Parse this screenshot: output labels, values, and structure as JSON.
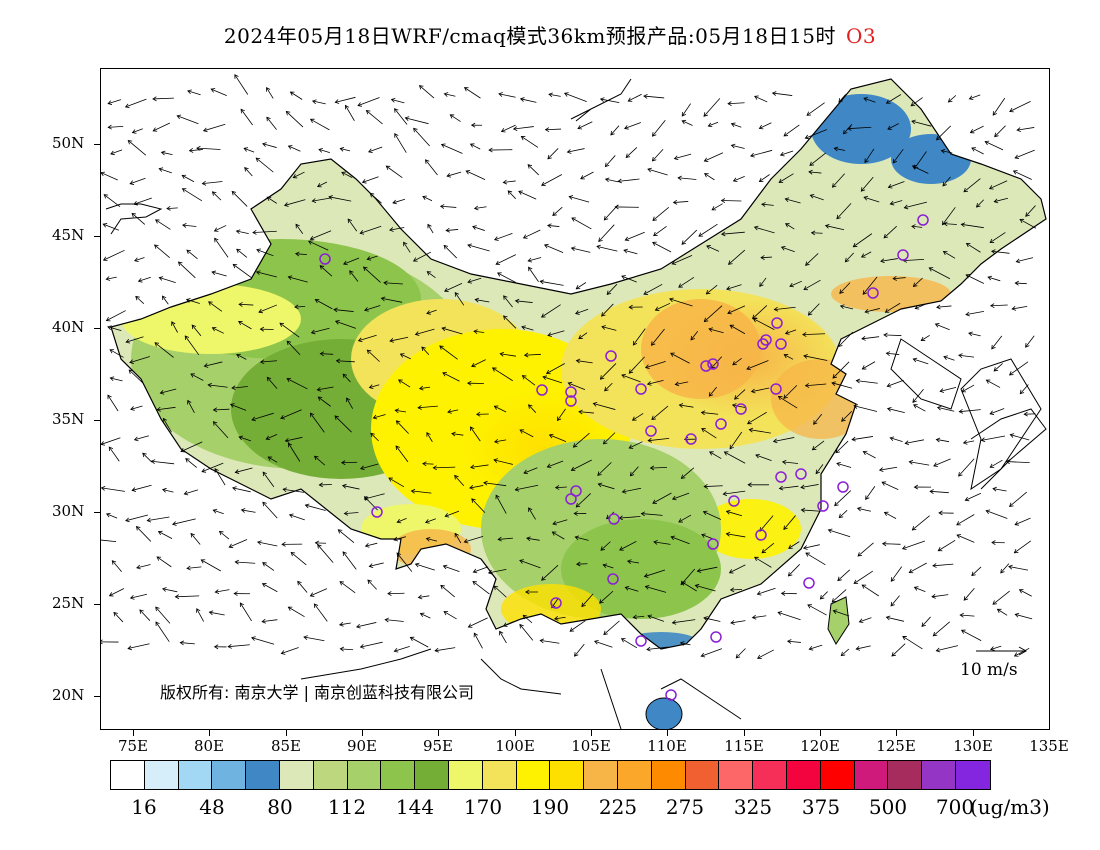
{
  "title": {
    "main": "2024年05月18日WRF/cmaq模式36km预报产品:05月18日15时",
    "species": "O3",
    "species_color": "#e02020"
  },
  "map": {
    "latitude_labels": [
      "50N",
      "45N",
      "40N",
      "35N",
      "30N",
      "25N",
      "20N"
    ],
    "longitude_labels": [
      "75E",
      "80E",
      "85E",
      "90E",
      "95E",
      "100E",
      "105E",
      "110E",
      "115E",
      "120E",
      "125E",
      "130E",
      "135E"
    ],
    "copyright": "版权所有: 南京大学 | 南京创蓝科技有限公司",
    "wind_reference": "10 m/s",
    "station_marker_color": "#8a1fd6"
  },
  "colorbar": {
    "colors": [
      "#ffffff",
      "#d6eefa",
      "#a3d8f4",
      "#6fb3e0",
      "#3f88c5",
      "#dde8b9",
      "#bdd77e",
      "#a6d06a",
      "#8cc44c",
      "#74ae36",
      "#eef66a",
      "#f3e35a",
      "#fef200",
      "#fee000",
      "#f7b548",
      "#fba729",
      "#fe8a00",
      "#f06030",
      "#fe6767",
      "#f62f58",
      "#f3043f",
      "#fe0000",
      "#cf1a7b",
      "#a52c5d",
      "#9435c6",
      "#8426e0"
    ],
    "labels": [
      "16",
      "48",
      "80",
      "112",
      "144",
      "170",
      "190",
      "225",
      "275",
      "325",
      "375",
      "500",
      "700"
    ],
    "unit": "(ug/m3)"
  }
}
